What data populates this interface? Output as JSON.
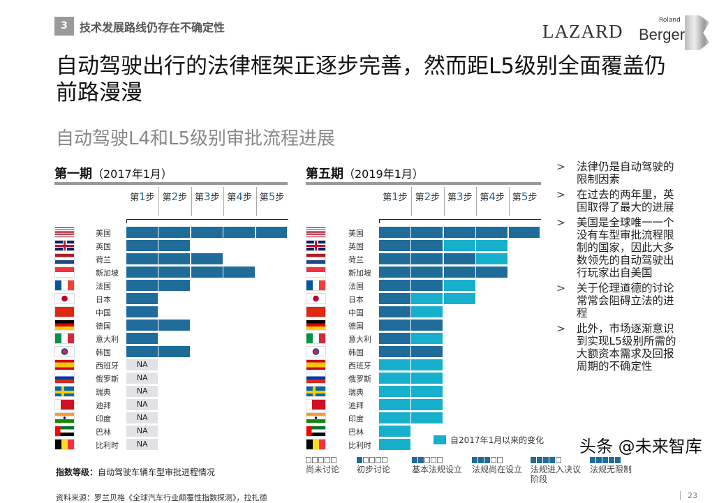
{
  "header": {
    "section_number": "3",
    "section_title": "技术发展路线仍存在不确定性",
    "logo_lazard": "LAZARD",
    "logo_roland": "Roland",
    "logo_berger": "Berger"
  },
  "title": "自动驾驶出行的法律框架正逐步完善，然而距L5级别全面覆盖仍前路漫漫",
  "subtitle": "自动驾驶L4和L5级别审批流程进展",
  "colors": {
    "level": "#1f6b9a",
    "new_since_2017": "#17b0cc",
    "na": "#e2e2e6"
  },
  "steps": [
    "1",
    "2",
    "3",
    "4",
    "5"
  ],
  "step_prefix": "第",
  "step_suffix": "步",
  "countries": [
    {
      "name": "美国",
      "flag": "us"
    },
    {
      "name": "英国",
      "flag": "uk"
    },
    {
      "name": "荷兰",
      "flag": "nl"
    },
    {
      "name": "新加坡",
      "flag": "sg"
    },
    {
      "name": "法国",
      "flag": "fr"
    },
    {
      "name": "日本",
      "flag": "jp"
    },
    {
      "name": "中国",
      "flag": "cn"
    },
    {
      "name": "德国",
      "flag": "de"
    },
    {
      "name": "意大利",
      "flag": "it"
    },
    {
      "name": "韩国",
      "flag": "kr"
    },
    {
      "name": "西班牙",
      "flag": "es"
    },
    {
      "name": "俄罗斯",
      "flag": "ru"
    },
    {
      "name": "瑞典",
      "flag": "se"
    },
    {
      "name": "迪拜",
      "flag": "bh"
    },
    {
      "name": "印度",
      "flag": "in"
    },
    {
      "name": "巴林",
      "flag": "ae"
    },
    {
      "name": "比利时",
      "flag": "be"
    }
  ],
  "panels": [
    {
      "title": "第一期",
      "date": "（2017年1月）",
      "levels": [
        5,
        2,
        3,
        4,
        2,
        1,
        1,
        2,
        1,
        2,
        "NA",
        "NA",
        "NA",
        "NA",
        "NA",
        "NA",
        "NA"
      ],
      "new_from": null
    },
    {
      "title": "第五期",
      "date": "（2019年1月）",
      "levels": [
        5,
        4,
        4,
        4,
        3,
        3,
        2,
        2,
        2,
        2,
        2,
        2,
        2,
        2,
        2,
        1,
        1
      ],
      "new_from": [
        5,
        2,
        3,
        4,
        2,
        1,
        1,
        2,
        1,
        2,
        0,
        0,
        0,
        0,
        0,
        0,
        0
      ]
    }
  ],
  "na_label": "NA",
  "new_legend": "自2017年1月以来的变化",
  "bullets": [
    "法律仍是自动驾驶的限制因素",
    "在过去的两年里，英国取得了最大的进展",
    "美国是全球唯一一个没有车型审批流程限制的国家，因此大多数领先的自动驾驶出行玩家出自美国",
    "关于伦理道德的讨论常常会阻碍立法的进程",
    "此外，市场逐渐意识到实现L5级别所需的大额资本需求及回报周期的不确定性"
  ],
  "index_label": "指数等级：",
  "index_text": "自动驾驶车辆车型审批进程情况",
  "source": "资料来源：罗兰贝格《全球汽车行业颠覆性指数探测》，拉扎德",
  "scale_legend": [
    {
      "filled": 0,
      "label": "尚未讨论"
    },
    {
      "filled": 1,
      "label": "初步讨论"
    },
    {
      "filled": 2,
      "label": "基本法规设立"
    },
    {
      "filled": 3,
      "label": "法规尚在设立"
    },
    {
      "filled": 4,
      "label": "法规进入决议阶段"
    },
    {
      "filled": 5,
      "label": "法规无限制"
    }
  ],
  "watermark": "头条 @未来智库",
  "page_number": "23"
}
